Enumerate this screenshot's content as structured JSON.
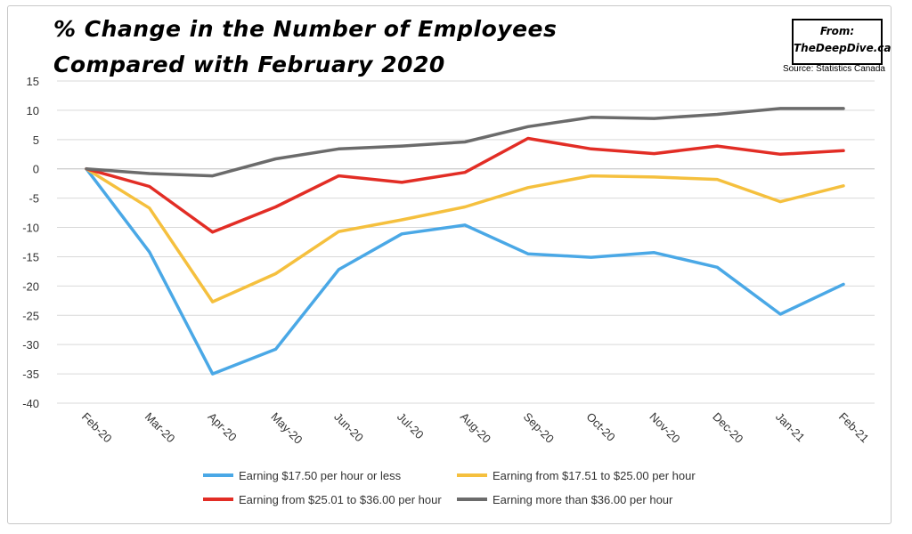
{
  "title": {
    "line1": "% Change in the Number of Employees",
    "line2": "Compared with February 2020"
  },
  "source_box": {
    "from": "From:",
    "site": "TheDeepDive.ca"
  },
  "source_note": "Source: Statistics Canada",
  "chart_data": {
    "type": "line",
    "categories": [
      "Feb-20",
      "Mar-20",
      "Apr-20",
      "May-20",
      "Jun-20",
      "Jul-20",
      "Aug-20",
      "Sep-20",
      "Oct-20",
      "Nov-20",
      "Dec-20",
      "Jan-21",
      "Feb-21"
    ],
    "ylim": [
      -40,
      15
    ],
    "yticks": [
      15,
      10,
      5,
      0,
      -5,
      -10,
      -15,
      -20,
      -25,
      -30,
      -35,
      -40
    ],
    "grid": true,
    "legend_position": "bottom",
    "series": [
      {
        "name": "Earning $17.50 per hour or less",
        "color": "#4aa8e6",
        "values": [
          0,
          -14.2,
          -35.0,
          -30.8,
          -17.2,
          -11.1,
          -9.6,
          -14.5,
          -15.1,
          -14.3,
          -16.8,
          -24.8,
          -19.7
        ]
      },
      {
        "name": "Earning from $17.51 to $25.00 per hour",
        "color": "#f5c03e",
        "values": [
          0,
          -6.7,
          -22.7,
          -17.9,
          -10.7,
          -8.7,
          -6.5,
          -3.2,
          -1.2,
          -1.4,
          -1.8,
          -5.6,
          -2.9
        ]
      },
      {
        "name": "Earning from $25.01 to $36.00 per hour",
        "color": "#e22d25",
        "values": [
          0,
          -3.0,
          -10.8,
          -6.5,
          -1.2,
          -2.3,
          -0.6,
          5.2,
          3.4,
          2.6,
          3.9,
          2.5,
          3.1
        ]
      },
      {
        "name": "Earning more than $36.00 per hour",
        "color": "#6b6b6b",
        "values": [
          0,
          -0.8,
          -1.2,
          1.7,
          3.4,
          3.9,
          4.6,
          7.2,
          8.8,
          8.6,
          9.3,
          10.3,
          10.3
        ]
      }
    ]
  }
}
